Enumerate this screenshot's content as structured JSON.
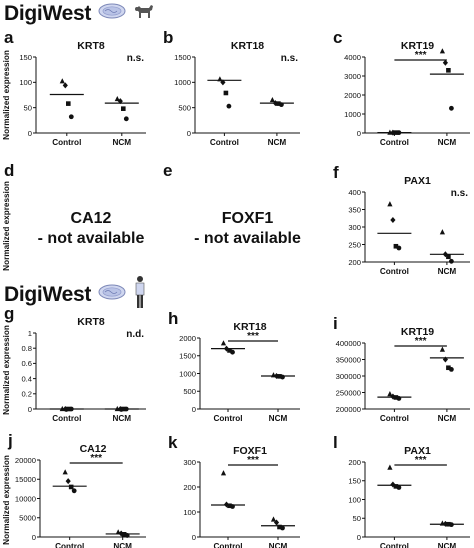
{
  "sections": [
    {
      "title": "DigiWest",
      "icons": [
        "petri-dish-icon",
        "dog-icon"
      ]
    },
    {
      "title": "DigiWest",
      "icons": [
        "petri-dish-icon",
        "human-icon"
      ]
    }
  ],
  "y_axis_label": "Normalized expression",
  "chart_data": [
    {
      "panel": "a",
      "type": "scatter",
      "title": "KRT8",
      "categories": [
        "Control",
        "NCM"
      ],
      "ylim": [
        0,
        150
      ],
      "yticks": [
        0,
        50,
        100,
        150
      ],
      "points": [
        [
          102,
          94,
          58,
          32
        ],
        [
          67,
          63,
          48,
          28
        ]
      ],
      "medians": [
        76,
        59
      ],
      "significance": "n.s."
    },
    {
      "panel": "b",
      "type": "scatter",
      "title": "KRT18",
      "categories": [
        "Control",
        "NCM"
      ],
      "ylim": [
        0,
        1500
      ],
      "yticks": [
        0,
        500,
        1000,
        1500
      ],
      "points": [
        [
          1060,
          1000,
          790,
          530
        ],
        [
          650,
          590,
          580,
          560
        ]
      ],
      "medians": [
        1040,
        590
      ],
      "significance": "n.s."
    },
    {
      "panel": "c",
      "type": "scatter",
      "title": "KRT19",
      "categories": [
        "Control",
        "NCM"
      ],
      "ylim": [
        0,
        4000
      ],
      "yticks": [
        0,
        1000,
        2000,
        3000,
        4000
      ],
      "points": [
        [
          20,
          20,
          20,
          20
        ],
        [
          4300,
          3700,
          3300,
          1300
        ]
      ],
      "medians": [
        20,
        3100
      ],
      "significance": "***"
    },
    {
      "panel": "d",
      "type": "text",
      "title": "CA12",
      "subtitle": "- not available"
    },
    {
      "panel": "e",
      "type": "text",
      "title": "FOXF1",
      "subtitle": "- not available"
    },
    {
      "panel": "f",
      "type": "scatter",
      "title": "PAX1",
      "categories": [
        "Control",
        "NCM"
      ],
      "ylim": [
        200,
        400
      ],
      "yticks": [
        200,
        250,
        300,
        350,
        400
      ],
      "points": [
        [
          365,
          320,
          245,
          240
        ],
        [
          285,
          222,
          215,
          202
        ]
      ],
      "medians": [
        282,
        222
      ],
      "significance": "n.s."
    },
    {
      "panel": "g",
      "type": "scatter",
      "title": "KRT8",
      "categories": [
        "Control",
        "NCM"
      ],
      "ylim": [
        0,
        1.0
      ],
      "yticks": [
        0,
        0.2,
        0.4,
        0.6,
        0.8,
        1.0
      ],
      "points": [
        [
          0,
          0,
          0,
          0
        ],
        [
          0,
          0,
          0,
          0
        ]
      ],
      "medians": [
        0,
        0
      ],
      "significance": "n.d."
    },
    {
      "panel": "h",
      "type": "scatter",
      "title": "KRT18",
      "categories": [
        "Control",
        "NCM"
      ],
      "ylim": [
        0,
        2000
      ],
      "yticks": [
        0,
        500,
        1000,
        1500,
        2000
      ],
      "points": [
        [
          1850,
          1700,
          1650,
          1600
        ],
        [
          950,
          930,
          920,
          900
        ]
      ],
      "medians": [
        1700,
        930
      ],
      "significance": "***"
    },
    {
      "panel": "i",
      "type": "scatter",
      "title": "KRT19",
      "categories": [
        "Control",
        "NCM"
      ],
      "ylim": [
        200000,
        400000
      ],
      "yticks": [
        200000,
        250000,
        300000,
        350000,
        400000
      ],
      "points": [
        [
          245000,
          238000,
          235000,
          232000
        ],
        [
          380000,
          350000,
          325000,
          320000
        ]
      ],
      "medians": [
        236000,
        355000
      ],
      "significance": "***"
    },
    {
      "panel": "j",
      "type": "scatter",
      "title": "CA12",
      "categories": [
        "Control",
        "NCM"
      ],
      "ylim": [
        0,
        20000
      ],
      "yticks": [
        0,
        5000,
        10000,
        15000,
        20000
      ],
      "points": [
        [
          16800,
          14500,
          13000,
          12000
        ],
        [
          1200,
          900,
          700,
          400
        ]
      ],
      "medians": [
        13200,
        800
      ],
      "significance": "***"
    },
    {
      "panel": "k",
      "type": "scatter",
      "title": "FOXF1",
      "categories": [
        "Control",
        "NCM"
      ],
      "ylim": [
        0,
        300
      ],
      "yticks": [
        0,
        100,
        200,
        300
      ],
      "points": [
        [
          255,
          130,
          125,
          122
        ],
        [
          70,
          58,
          40,
          36
        ]
      ],
      "medians": [
        128,
        45
      ],
      "significance": "***"
    },
    {
      "panel": "l",
      "type": "scatter",
      "title": "PAX1",
      "categories": [
        "Control",
        "NCM"
      ],
      "ylim": [
        0,
        200
      ],
      "yticks": [
        0,
        50,
        100,
        150,
        200
      ],
      "points": [
        [
          185,
          140,
          135,
          132
        ],
        [
          36,
          35,
          34,
          33
        ]
      ],
      "medians": [
        138,
        34
      ],
      "significance": "***"
    }
  ]
}
